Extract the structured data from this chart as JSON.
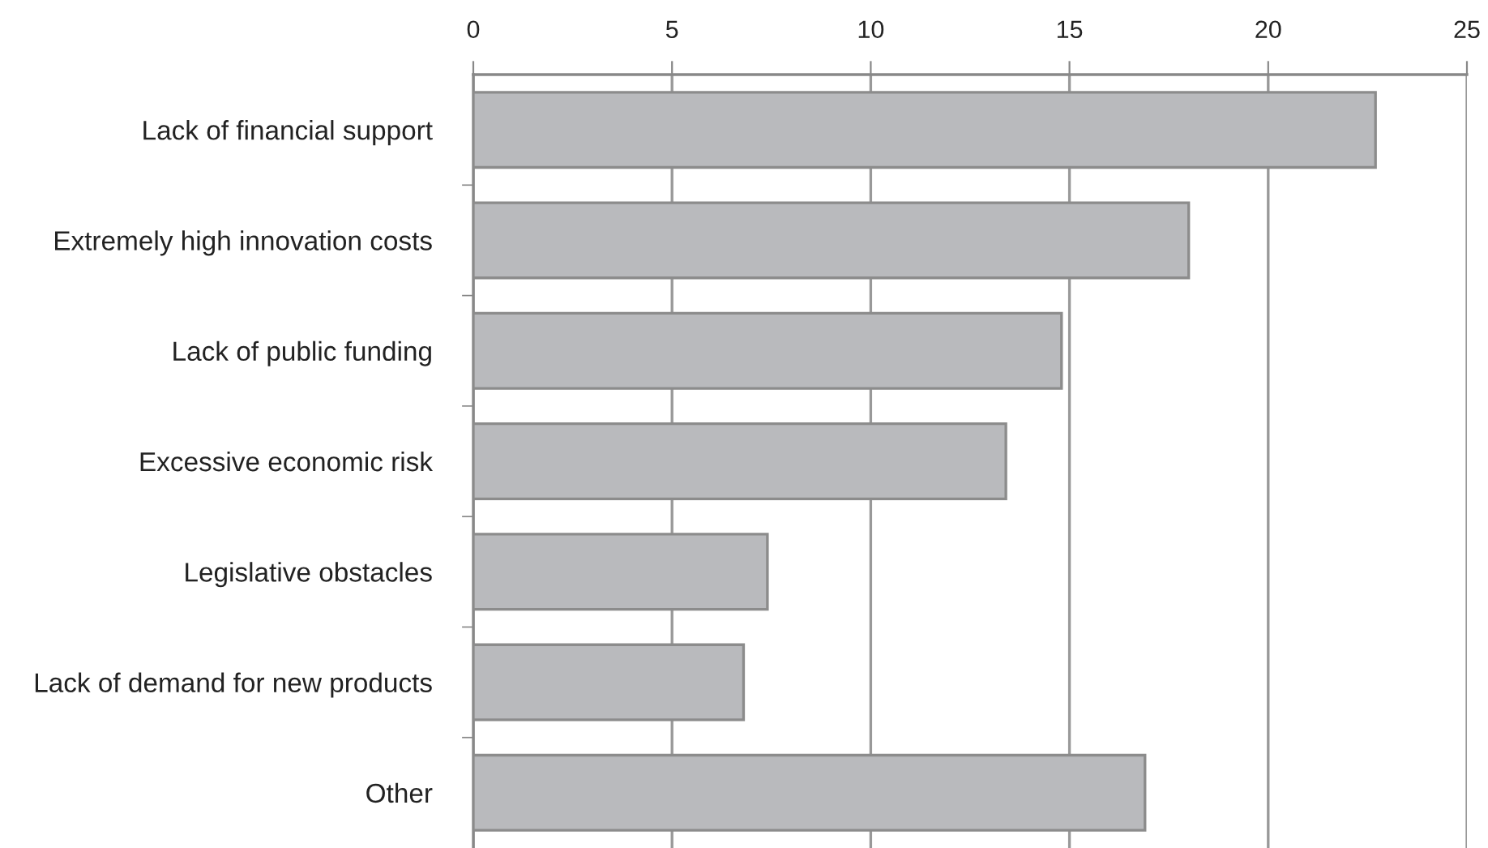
{
  "chart_data": {
    "type": "bar",
    "orientation": "horizontal",
    "categories": [
      "Lack of financial support",
      "Extremely high innovation costs",
      "Lack of public funding",
      "Excessive economic risk",
      "Legislative obstacles",
      "Lack of demand for new products",
      "Other"
    ],
    "values": [
      22.7,
      18.0,
      14.8,
      13.4,
      7.4,
      6.8,
      16.9
    ],
    "color": "#b9babd",
    "xlim": [
      0,
      25
    ],
    "xticks": [
      0,
      5,
      10,
      15,
      20,
      25
    ],
    "grid": "x"
  }
}
